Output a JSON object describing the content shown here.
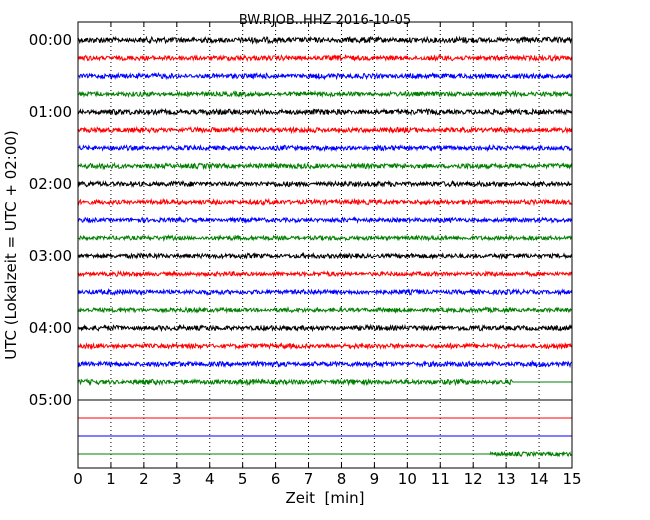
{
  "chart_data": {
    "type": "line",
    "title": "BW.RJOB..HHZ 2016-10-05",
    "xlabel": "Zeit  [min]",
    "ylabel": "UTC (Lokalzeit = UTC + 02:00)",
    "xlim": [
      0,
      15
    ],
    "x_ticks": [
      0,
      1,
      2,
      3,
      4,
      5,
      6,
      7,
      8,
      9,
      10,
      11,
      12,
      13,
      14,
      15
    ],
    "y_ticks": [
      "00:00",
      "01:00",
      "02:00",
      "03:00",
      "04:00",
      "05:00"
    ],
    "grid": "vertical dotted at each minute",
    "colors": [
      "#000000",
      "#ff0000",
      "#0000ff",
      "#008000"
    ],
    "traces": [
      {
        "start": "00:00",
        "color": "#000000",
        "amplitude": 3.2,
        "signal_until": 15
      },
      {
        "start": "00:15",
        "color": "#ff0000",
        "amplitude": 2.8,
        "signal_until": 15
      },
      {
        "start": "00:30",
        "color": "#0000ff",
        "amplitude": 2.8,
        "signal_until": 15
      },
      {
        "start": "00:45",
        "color": "#008000",
        "amplitude": 2.6,
        "signal_until": 15
      },
      {
        "start": "01:00",
        "color": "#000000",
        "amplitude": 3.0,
        "signal_until": 15
      },
      {
        "start": "01:15",
        "color": "#ff0000",
        "amplitude": 2.8,
        "signal_until": 15
      },
      {
        "start": "01:30",
        "color": "#0000ff",
        "amplitude": 2.6,
        "signal_until": 15
      },
      {
        "start": "01:45",
        "color": "#008000",
        "amplitude": 2.8,
        "signal_until": 15
      },
      {
        "start": "02:00",
        "color": "#000000",
        "amplitude": 2.8,
        "signal_until": 15
      },
      {
        "start": "02:15",
        "color": "#ff0000",
        "amplitude": 2.6,
        "signal_until": 15
      },
      {
        "start": "02:30",
        "color": "#0000ff",
        "amplitude": 2.4,
        "signal_until": 15
      },
      {
        "start": "02:45",
        "color": "#008000",
        "amplitude": 2.4,
        "signal_until": 15
      },
      {
        "start": "03:00",
        "color": "#000000",
        "amplitude": 2.6,
        "signal_until": 15
      },
      {
        "start": "03:15",
        "color": "#ff0000",
        "amplitude": 2.4,
        "signal_until": 15
      },
      {
        "start": "03:30",
        "color": "#0000ff",
        "amplitude": 2.6,
        "signal_until": 15
      },
      {
        "start": "03:45",
        "color": "#008000",
        "amplitude": 2.4,
        "signal_until": 15
      },
      {
        "start": "04:00",
        "color": "#000000",
        "amplitude": 2.8,
        "signal_until": 15
      },
      {
        "start": "04:15",
        "color": "#ff0000",
        "amplitude": 2.6,
        "signal_until": 15
      },
      {
        "start": "04:30",
        "color": "#0000ff",
        "amplitude": 2.8,
        "signal_until": 15
      },
      {
        "start": "04:45",
        "color": "#008000",
        "amplitude": 2.8,
        "signal_until": 13.2
      },
      {
        "start": "05:00",
        "color": "#000000",
        "amplitude": 0,
        "signal_until": 0
      },
      {
        "start": "05:15",
        "color": "#ff0000",
        "amplitude": 0,
        "signal_until": 0
      },
      {
        "start": "05:30",
        "color": "#0000ff",
        "amplitude": 0,
        "signal_until": 0
      },
      {
        "start": "05:45",
        "color": "#008000",
        "amplitude": 2.4,
        "signal_from": 12.5,
        "signal_until": 15
      }
    ]
  }
}
